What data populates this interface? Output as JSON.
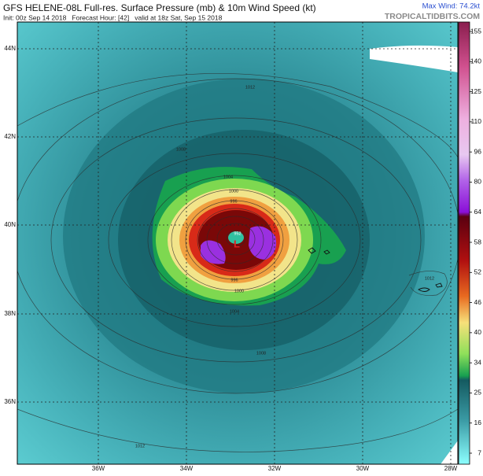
{
  "header": {
    "title": "GFS HELENE-08L Full-res. Surface Pressure (mb) & 10m Wind Speed (kt)",
    "subtitle": "Init: 00z Sep 14 2018   Forecast Hour: [42]   valid at 18z Sat, Sep 15 2018",
    "max_wind": "Max Wind: 74.2kt",
    "site": "TROPICALTIDBITS.COM"
  },
  "map": {
    "lat_labels": [
      "44N",
      "42N",
      "40N",
      "38N",
      "36N"
    ],
    "lon_labels": [
      "36W",
      "34W",
      "32W",
      "30W",
      "28W"
    ],
    "low_marker": "L",
    "contour_labels": [
      "1012",
      "1008",
      "1004",
      "1000",
      "996",
      "952",
      "996",
      "1000",
      "1004",
      "1008",
      "1012",
      "1012"
    ]
  },
  "colorbar": {
    "labels": [
      "155",
      "140",
      "125",
      "110",
      "96",
      "80",
      "64",
      "58",
      "52",
      "46",
      "40",
      "34",
      "25",
      "16",
      "7"
    ]
  }
}
